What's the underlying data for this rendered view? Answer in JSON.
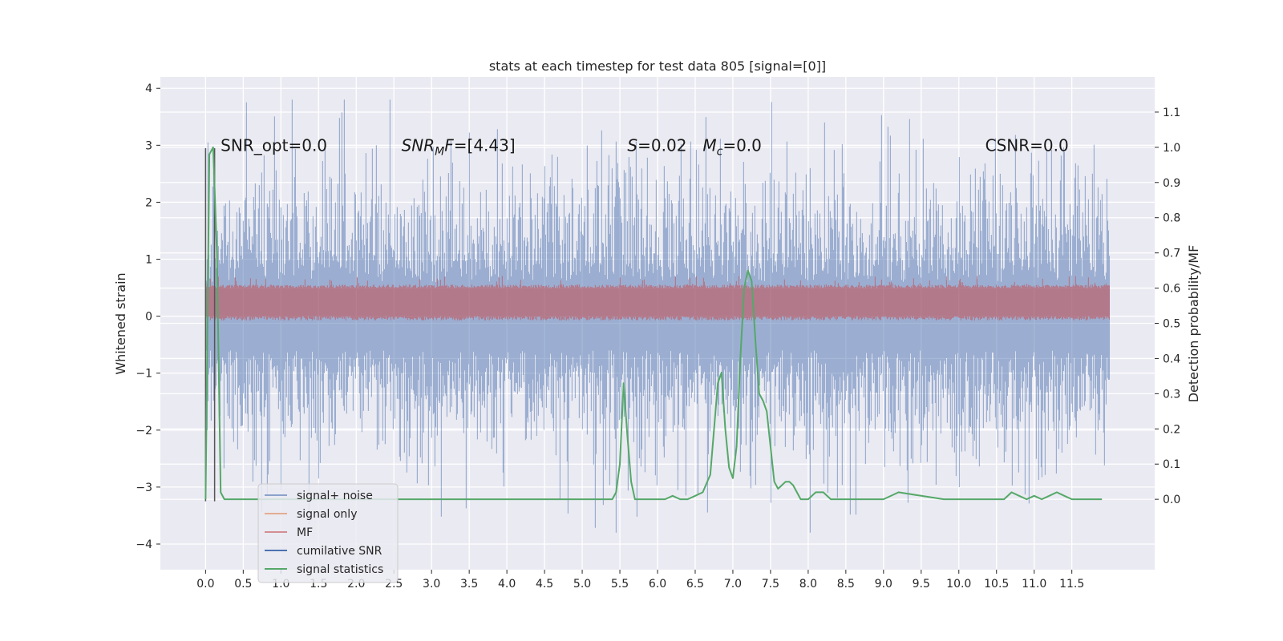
{
  "chart_data": {
    "type": "line",
    "title": "stats at each timestep for test data 805 [signal=[0]]",
    "ylabel": "Whitened strain",
    "y2label": "Detection probability/MF",
    "xlim": [
      -0.6,
      12.6
    ],
    "ylim": [
      -4.45,
      4.2
    ],
    "y2lim": [
      -0.2,
      1.2
    ],
    "x_ticks": [
      0.0,
      0.5,
      1.0,
      1.5,
      2.0,
      2.5,
      3.0,
      3.5,
      4.0,
      4.5,
      5.0,
      5.5,
      6.0,
      6.5,
      7.0,
      7.5,
      8.0,
      8.5,
      9.0,
      9.5,
      10.0,
      10.5,
      11.0,
      11.5
    ],
    "x_tick_labels": [
      "0.0",
      "0.5",
      "1.0",
      "1.5",
      "2.0",
      "2.5",
      "3.0",
      "3.5",
      "4.0",
      "4.5",
      "5.0",
      "5.5",
      "6.0",
      "6.5",
      "7.0",
      "7.5",
      "8.0",
      "8.5",
      "9.0",
      "9.5",
      "10.0",
      "10.5",
      "11.0",
      "11.5"
    ],
    "y_ticks": [
      -4,
      -3,
      -2,
      -1,
      0,
      1,
      2,
      3,
      4
    ],
    "y_tick_labels": [
      "−4",
      "−3",
      "−2",
      "−1",
      "0",
      "1",
      "2",
      "3",
      "4"
    ],
    "y2_ticks": [
      0.0,
      0.1,
      0.2,
      0.3,
      0.4,
      0.5,
      0.6,
      0.7,
      0.8,
      0.9,
      1.0,
      1.1
    ],
    "y2_tick_labels": [
      "0.0",
      "0.1",
      "0.2",
      "0.3",
      "0.4",
      "0.5",
      "0.6",
      "0.7",
      "0.8",
      "0.9",
      "1.0",
      "1.1"
    ],
    "grid": true,
    "legend_position": "lower-left",
    "annotations": [
      {
        "text": "SNR_opt=0.0",
        "x": 0.2,
        "y": 3.0
      },
      {
        "text": "SNR",
        "sub": "M",
        "suffix": "F=[4.43]",
        "italic": true,
        "x": 2.6,
        "y": 3.0
      },
      {
        "text": "S",
        "suffix": "=0.02",
        "italic": true,
        "x": 5.6,
        "y": 3.0
      },
      {
        "text": "M",
        "sub": "c",
        "suffix": "=0.0",
        "italic": true,
        "x": 6.6,
        "y": 3.0
      },
      {
        "text": "CSNR=0.0",
        "x": 10.35,
        "y": 3.0
      }
    ],
    "series": [
      {
        "name": "signal+ noise",
        "color": "#4c72b0",
        "kind": "noise",
        "x_range": [
          0,
          12
        ],
        "typical_abs": 1.1,
        "max_abs": 3.8
      },
      {
        "name": "signal only",
        "color": "#dd8452",
        "kind": "flat",
        "value": 0
      },
      {
        "name": "MF",
        "color": "#c44e52",
        "kind": "band",
        "y2_range": [
          0.52,
          0.6
        ],
        "x_range": [
          0,
          12
        ]
      },
      {
        "name": "cumilative SNR",
        "color": "#4c72b0",
        "kind": "flat",
        "value": 0
      },
      {
        "name": "signal statistics",
        "color": "#55a868",
        "kind": "line",
        "axis": "y2",
        "x": [
          0.0,
          0.05,
          0.1,
          0.15,
          0.2,
          0.25,
          0.3,
          0.5,
          1.0,
          2.0,
          3.0,
          4.0,
          5.0,
          5.4,
          5.45,
          5.5,
          5.55,
          5.6,
          5.65,
          5.7,
          5.8,
          5.9,
          6.0,
          6.1,
          6.2,
          6.3,
          6.4,
          6.5,
          6.6,
          6.7,
          6.75,
          6.8,
          6.85,
          6.9,
          6.95,
          7.0,
          7.05,
          7.1,
          7.15,
          7.2,
          7.25,
          7.3,
          7.35,
          7.4,
          7.45,
          7.5,
          7.55,
          7.6,
          7.65,
          7.7,
          7.75,
          7.8,
          7.85,
          7.9,
          8.0,
          8.1,
          8.2,
          8.3,
          8.5,
          8.7,
          8.8,
          8.9,
          9.0,
          9.2,
          9.5,
          9.8,
          10.0,
          10.2,
          10.4,
          10.5,
          10.6,
          10.7,
          10.8,
          10.9,
          11.0,
          11.1,
          11.2,
          11.3,
          11.4,
          11.5,
          11.6,
          11.7,
          11.8,
          11.9
        ],
        "y": [
          0.0,
          0.98,
          1.0,
          0.7,
          0.02,
          0.0,
          0.0,
          0.0,
          0.0,
          0.0,
          0.0,
          0.0,
          0.0,
          0.0,
          0.02,
          0.1,
          0.33,
          0.18,
          0.05,
          0.0,
          0.0,
          0.0,
          0.0,
          0.0,
          0.01,
          0.0,
          0.0,
          0.01,
          0.02,
          0.07,
          0.2,
          0.33,
          0.36,
          0.2,
          0.09,
          0.06,
          0.15,
          0.4,
          0.6,
          0.65,
          0.62,
          0.45,
          0.3,
          0.28,
          0.25,
          0.15,
          0.05,
          0.03,
          0.04,
          0.05,
          0.05,
          0.04,
          0.02,
          0.0,
          0.0,
          0.02,
          0.02,
          0.0,
          0.0,
          0.0,
          0.0,
          0.0,
          0.0,
          0.02,
          0.01,
          0.0,
          0.0,
          0.0,
          0.0,
          0.0,
          0.0,
          0.02,
          0.01,
          0.0,
          0.01,
          0.0,
          0.01,
          0.02,
          0.01,
          0.0,
          0.0,
          0.0,
          0.0,
          0.0
        ]
      }
    ],
    "vertical_lines": [
      {
        "x": 0.0,
        "ymin": -3.25,
        "ymax": 2.95,
        "color": "#555555"
      },
      {
        "x": 0.12,
        "ymin": -3.25,
        "ymax": 2.95,
        "color": "#555555"
      }
    ]
  }
}
